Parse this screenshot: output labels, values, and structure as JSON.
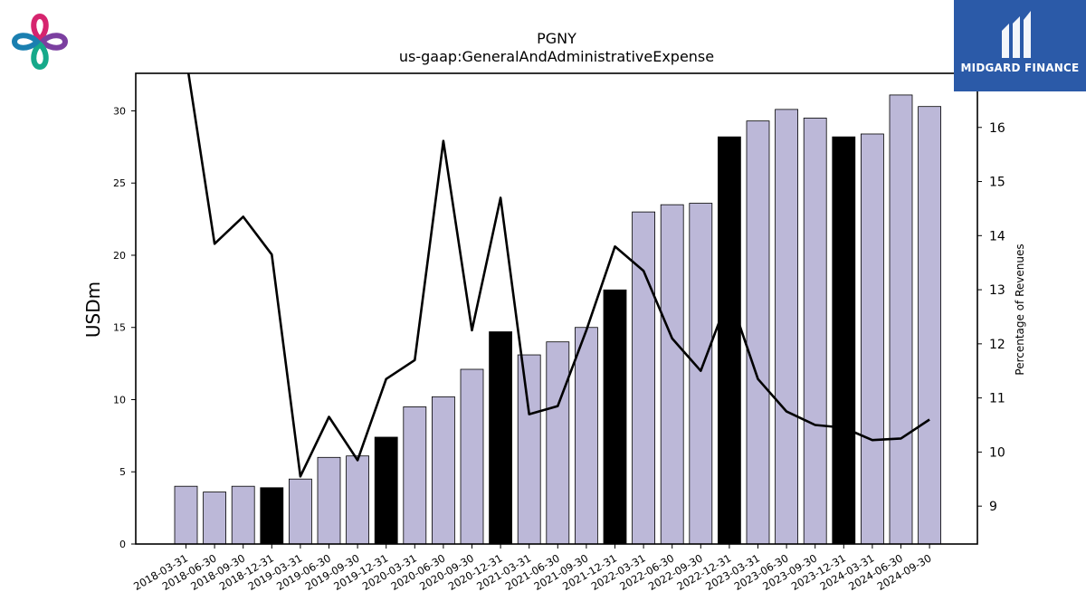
{
  "chart_data": {
    "type": "bar",
    "title": "PGNY",
    "subtitle": "us-gaap:GeneralAndAdministrativeExpense",
    "ylabel": "USDm",
    "y2label": "Percentage of Revenues",
    "ylim": [
      0,
      32.6
    ],
    "y2lim": [
      8.3,
      17.0
    ],
    "yticks": [
      0,
      5,
      10,
      15,
      20,
      25,
      30
    ],
    "y2ticks": [
      9,
      10,
      11,
      12,
      13,
      14,
      15,
      16
    ],
    "categories": [
      "2018-03-31",
      "2018-06-30",
      "2018-09-30",
      "2018-12-31",
      "2019-03-31",
      "2019-06-30",
      "2019-09-30",
      "2019-12-31",
      "2020-03-31",
      "2020-06-30",
      "2020-09-30",
      "2020-12-31",
      "2021-03-31",
      "2021-06-30",
      "2021-09-30",
      "2021-12-31",
      "2022-03-31",
      "2022-06-30",
      "2022-09-30",
      "2022-12-31",
      "2023-03-31",
      "2023-06-30",
      "2023-09-30",
      "2023-12-31",
      "2024-03-31",
      "2024-06-30",
      "2024-09-30"
    ],
    "series": [
      {
        "type": "bar",
        "values": [
          4.0,
          3.6,
          4.0,
          3.9,
          4.5,
          6.0,
          6.1,
          7.4,
          9.5,
          10.2,
          12.1,
          14.7,
          13.1,
          14.0,
          15.0,
          17.6,
          23.0,
          23.5,
          23.6,
          28.2,
          29.3,
          30.1,
          29.5,
          28.2,
          28.4,
          31.1,
          30.3
        ],
        "highlight": [
          false,
          false,
          false,
          true,
          false,
          false,
          false,
          true,
          false,
          false,
          false,
          true,
          false,
          false,
          false,
          true,
          false,
          false,
          false,
          true,
          false,
          false,
          false,
          true,
          false,
          false,
          false
        ]
      },
      {
        "type": "line",
        "axis": "right",
        "values": [
          17.3,
          13.85,
          14.35,
          13.65,
          9.55,
          10.65,
          9.85,
          11.35,
          11.7,
          15.75,
          12.25,
          14.7,
          10.7,
          10.85,
          12.25,
          13.8,
          13.35,
          12.1,
          11.5,
          12.9,
          11.35,
          10.75,
          10.5,
          10.45,
          10.22,
          10.25,
          10.6
        ]
      }
    ],
    "colors": {
      "bar": "#bcb8d8",
      "bar_highlight": "#000000",
      "line": "#000000",
      "edge": "#000000"
    },
    "grid": false
  },
  "logos": {
    "brand_name": "MIDGARD FINANCE",
    "brand_color": "#2b5aa8",
    "left_logo_icon": "four-petal-logo-icon",
    "left_logo_colors": [
      "#d6246e",
      "#7b3fa0",
      "#16a98a",
      "#1a7fb0"
    ]
  }
}
